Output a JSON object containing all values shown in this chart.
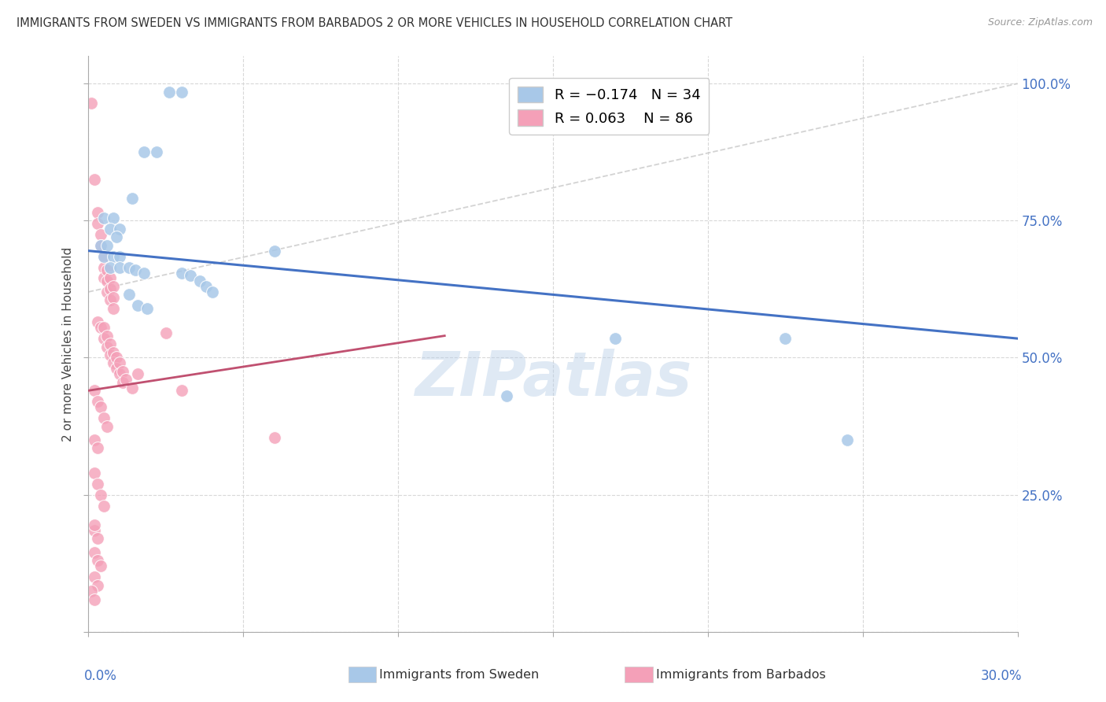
{
  "title": "IMMIGRANTS FROM SWEDEN VS IMMIGRANTS FROM BARBADOS 2 OR MORE VEHICLES IN HOUSEHOLD CORRELATION CHART",
  "source": "Source: ZipAtlas.com",
  "ylabel": "2 or more Vehicles in Household",
  "watermark": "ZIPatlas",
  "color_sweden": "#a8c8e8",
  "color_barbados": "#f4a0b8",
  "line_color_sweden": "#4472c4",
  "line_color_barbados": "#c05070",
  "line_color_diagonal": "#c8c8c8",
  "xlim": [
    0.0,
    0.3
  ],
  "ylim": [
    0.0,
    1.05
  ],
  "sweden_line": [
    0.0,
    0.695,
    0.3,
    0.535
  ],
  "barbados_line": [
    0.0,
    0.44,
    0.115,
    0.54
  ],
  "diagonal_line": [
    0.0,
    0.62,
    0.3,
    1.0
  ],
  "sweden_points": [
    [
      0.026,
      0.985
    ],
    [
      0.03,
      0.985
    ],
    [
      0.018,
      0.875
    ],
    [
      0.022,
      0.875
    ],
    [
      0.014,
      0.79
    ],
    [
      0.005,
      0.755
    ],
    [
      0.008,
      0.755
    ],
    [
      0.007,
      0.735
    ],
    [
      0.01,
      0.735
    ],
    [
      0.009,
      0.72
    ],
    [
      0.004,
      0.705
    ],
    [
      0.006,
      0.705
    ],
    [
      0.005,
      0.685
    ],
    [
      0.008,
      0.685
    ],
    [
      0.01,
      0.685
    ],
    [
      0.007,
      0.665
    ],
    [
      0.01,
      0.665
    ],
    [
      0.013,
      0.665
    ],
    [
      0.015,
      0.66
    ],
    [
      0.018,
      0.655
    ],
    [
      0.03,
      0.655
    ],
    [
      0.033,
      0.65
    ],
    [
      0.036,
      0.64
    ],
    [
      0.038,
      0.63
    ],
    [
      0.04,
      0.62
    ],
    [
      0.013,
      0.615
    ],
    [
      0.016,
      0.595
    ],
    [
      0.019,
      0.59
    ],
    [
      0.06,
      0.695
    ],
    [
      0.17,
      0.535
    ],
    [
      0.225,
      0.535
    ],
    [
      0.135,
      0.43
    ],
    [
      0.245,
      0.35
    ]
  ],
  "barbados_points": [
    [
      0.001,
      0.965
    ],
    [
      0.002,
      0.825
    ],
    [
      0.003,
      0.765
    ],
    [
      0.003,
      0.745
    ],
    [
      0.004,
      0.725
    ],
    [
      0.004,
      0.705
    ],
    [
      0.005,
      0.685
    ],
    [
      0.005,
      0.665
    ],
    [
      0.005,
      0.645
    ],
    [
      0.006,
      0.66
    ],
    [
      0.006,
      0.64
    ],
    [
      0.006,
      0.62
    ],
    [
      0.007,
      0.645
    ],
    [
      0.007,
      0.625
    ],
    [
      0.007,
      0.605
    ],
    [
      0.008,
      0.63
    ],
    [
      0.008,
      0.61
    ],
    [
      0.008,
      0.59
    ],
    [
      0.003,
      0.565
    ],
    [
      0.004,
      0.555
    ],
    [
      0.005,
      0.555
    ],
    [
      0.005,
      0.535
    ],
    [
      0.006,
      0.54
    ],
    [
      0.006,
      0.52
    ],
    [
      0.007,
      0.525
    ],
    [
      0.007,
      0.505
    ],
    [
      0.008,
      0.51
    ],
    [
      0.008,
      0.49
    ],
    [
      0.009,
      0.5
    ],
    [
      0.009,
      0.48
    ],
    [
      0.01,
      0.49
    ],
    [
      0.01,
      0.47
    ],
    [
      0.011,
      0.475
    ],
    [
      0.011,
      0.455
    ],
    [
      0.012,
      0.46
    ],
    [
      0.014,
      0.445
    ],
    [
      0.016,
      0.47
    ],
    [
      0.002,
      0.44
    ],
    [
      0.003,
      0.42
    ],
    [
      0.004,
      0.41
    ],
    [
      0.005,
      0.39
    ],
    [
      0.006,
      0.375
    ],
    [
      0.002,
      0.35
    ],
    [
      0.003,
      0.335
    ],
    [
      0.002,
      0.29
    ],
    [
      0.003,
      0.27
    ],
    [
      0.004,
      0.25
    ],
    [
      0.005,
      0.23
    ],
    [
      0.002,
      0.185
    ],
    [
      0.003,
      0.17
    ],
    [
      0.002,
      0.145
    ],
    [
      0.003,
      0.13
    ],
    [
      0.004,
      0.12
    ],
    [
      0.002,
      0.1
    ],
    [
      0.003,
      0.085
    ],
    [
      0.001,
      0.075
    ],
    [
      0.002,
      0.058
    ],
    [
      0.025,
      0.545
    ],
    [
      0.03,
      0.44
    ],
    [
      0.06,
      0.355
    ],
    [
      0.002,
      0.195
    ]
  ]
}
